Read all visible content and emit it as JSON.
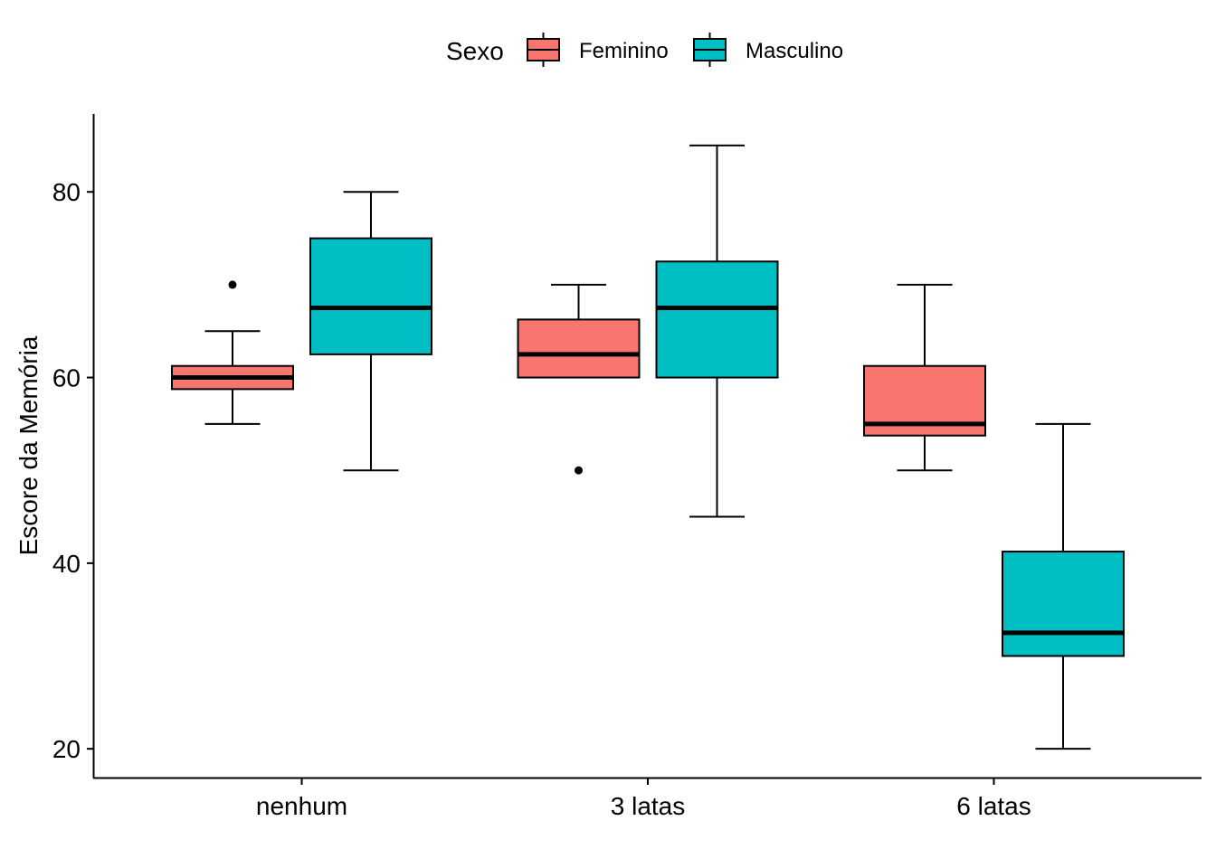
{
  "chart_data": {
    "type": "box",
    "title": "",
    "xlabel": "",
    "ylabel": "Escore da Memória",
    "categories": [
      "nenhum",
      "3 latas",
      "6 latas"
    ],
    "ylim": [
      16.9,
      88.4
    ],
    "yticks": [
      20,
      40,
      60,
      80
    ],
    "grid": false,
    "legend": {
      "title": "Sexo",
      "position": "top"
    },
    "series": [
      {
        "name": "Feminino",
        "color": "#F8766D",
        "boxes": [
          {
            "category": "nenhum",
            "whisker_low": 55,
            "q1": 58.75,
            "median": 60,
            "q3": 61.25,
            "whisker_high": 65,
            "outliers": [
              70
            ]
          },
          {
            "category": "3 latas",
            "whisker_low": 60,
            "q1": 60,
            "median": 62.5,
            "q3": 66.25,
            "whisker_high": 70,
            "outliers": [
              50
            ]
          },
          {
            "category": "6 latas",
            "whisker_low": 50,
            "q1": 53.75,
            "median": 55,
            "q3": 61.25,
            "whisker_high": 70,
            "outliers": []
          }
        ]
      },
      {
        "name": "Masculino",
        "color": "#00BFC4",
        "boxes": [
          {
            "category": "nenhum",
            "whisker_low": 50,
            "q1": 62.5,
            "median": 67.5,
            "q3": 75,
            "whisker_high": 80,
            "outliers": []
          },
          {
            "category": "3 latas",
            "whisker_low": 45,
            "q1": 60,
            "median": 67.5,
            "q3": 72.5,
            "whisker_high": 85,
            "outliers": []
          },
          {
            "category": "6 latas",
            "whisker_low": 20,
            "q1": 30,
            "median": 32.5,
            "q3": 41.25,
            "whisker_high": 55,
            "outliers": []
          }
        ]
      }
    ]
  }
}
